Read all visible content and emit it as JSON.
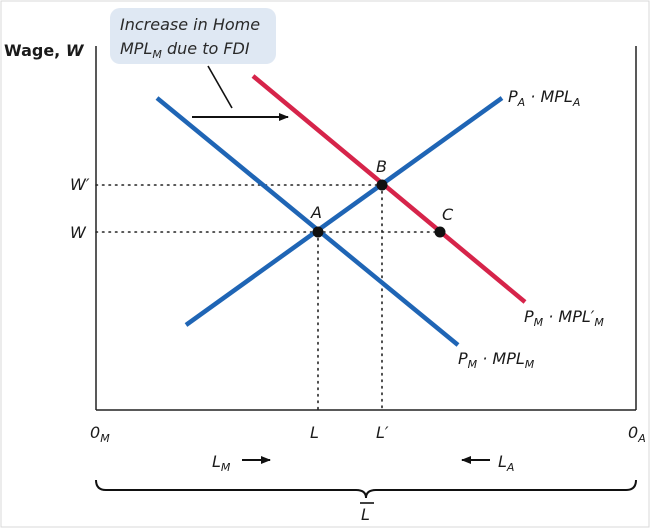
{
  "axes": {
    "y_label_word": "Wage,",
    "y_label_var": "W",
    "origin_left_main": "0",
    "origin_left_sub": "M",
    "origin_right_main": "0",
    "origin_right_sub": "A",
    "tick_w": "W",
    "tick_w_prime": "W′",
    "tick_l": "L",
    "tick_l_prime": "L′"
  },
  "labor_labels": {
    "lm_main": "L",
    "lm_sub": "M",
    "la_main": "L",
    "la_sub": "A",
    "total": "L"
  },
  "curves": {
    "pa_mpla": {
      "p": "P",
      "p_sub": "A",
      "dot": " · ",
      "mpl": "MPL",
      "mpl_sub": "A",
      "color": "#1f65b5"
    },
    "pm_mplm": {
      "p": "P",
      "p_sub": "M",
      "dot": " · ",
      "mpl": "MPL",
      "mpl_sub": "M",
      "color": "#1f65b5"
    },
    "pm_mplm_prime": {
      "p": "P",
      "p_sub": "M",
      "dot": " · ",
      "mpl": "MPL′",
      "mpl_sub": "M",
      "color": "#d6244a"
    }
  },
  "points": {
    "a": "A",
    "b": "B",
    "c": "C"
  },
  "callout": {
    "line1": "Increase in Home",
    "line2_main": "MPL",
    "line2_sub": "M",
    "line2_rest": " due to FDI",
    "bg_color": "#dfe8f3"
  }
}
